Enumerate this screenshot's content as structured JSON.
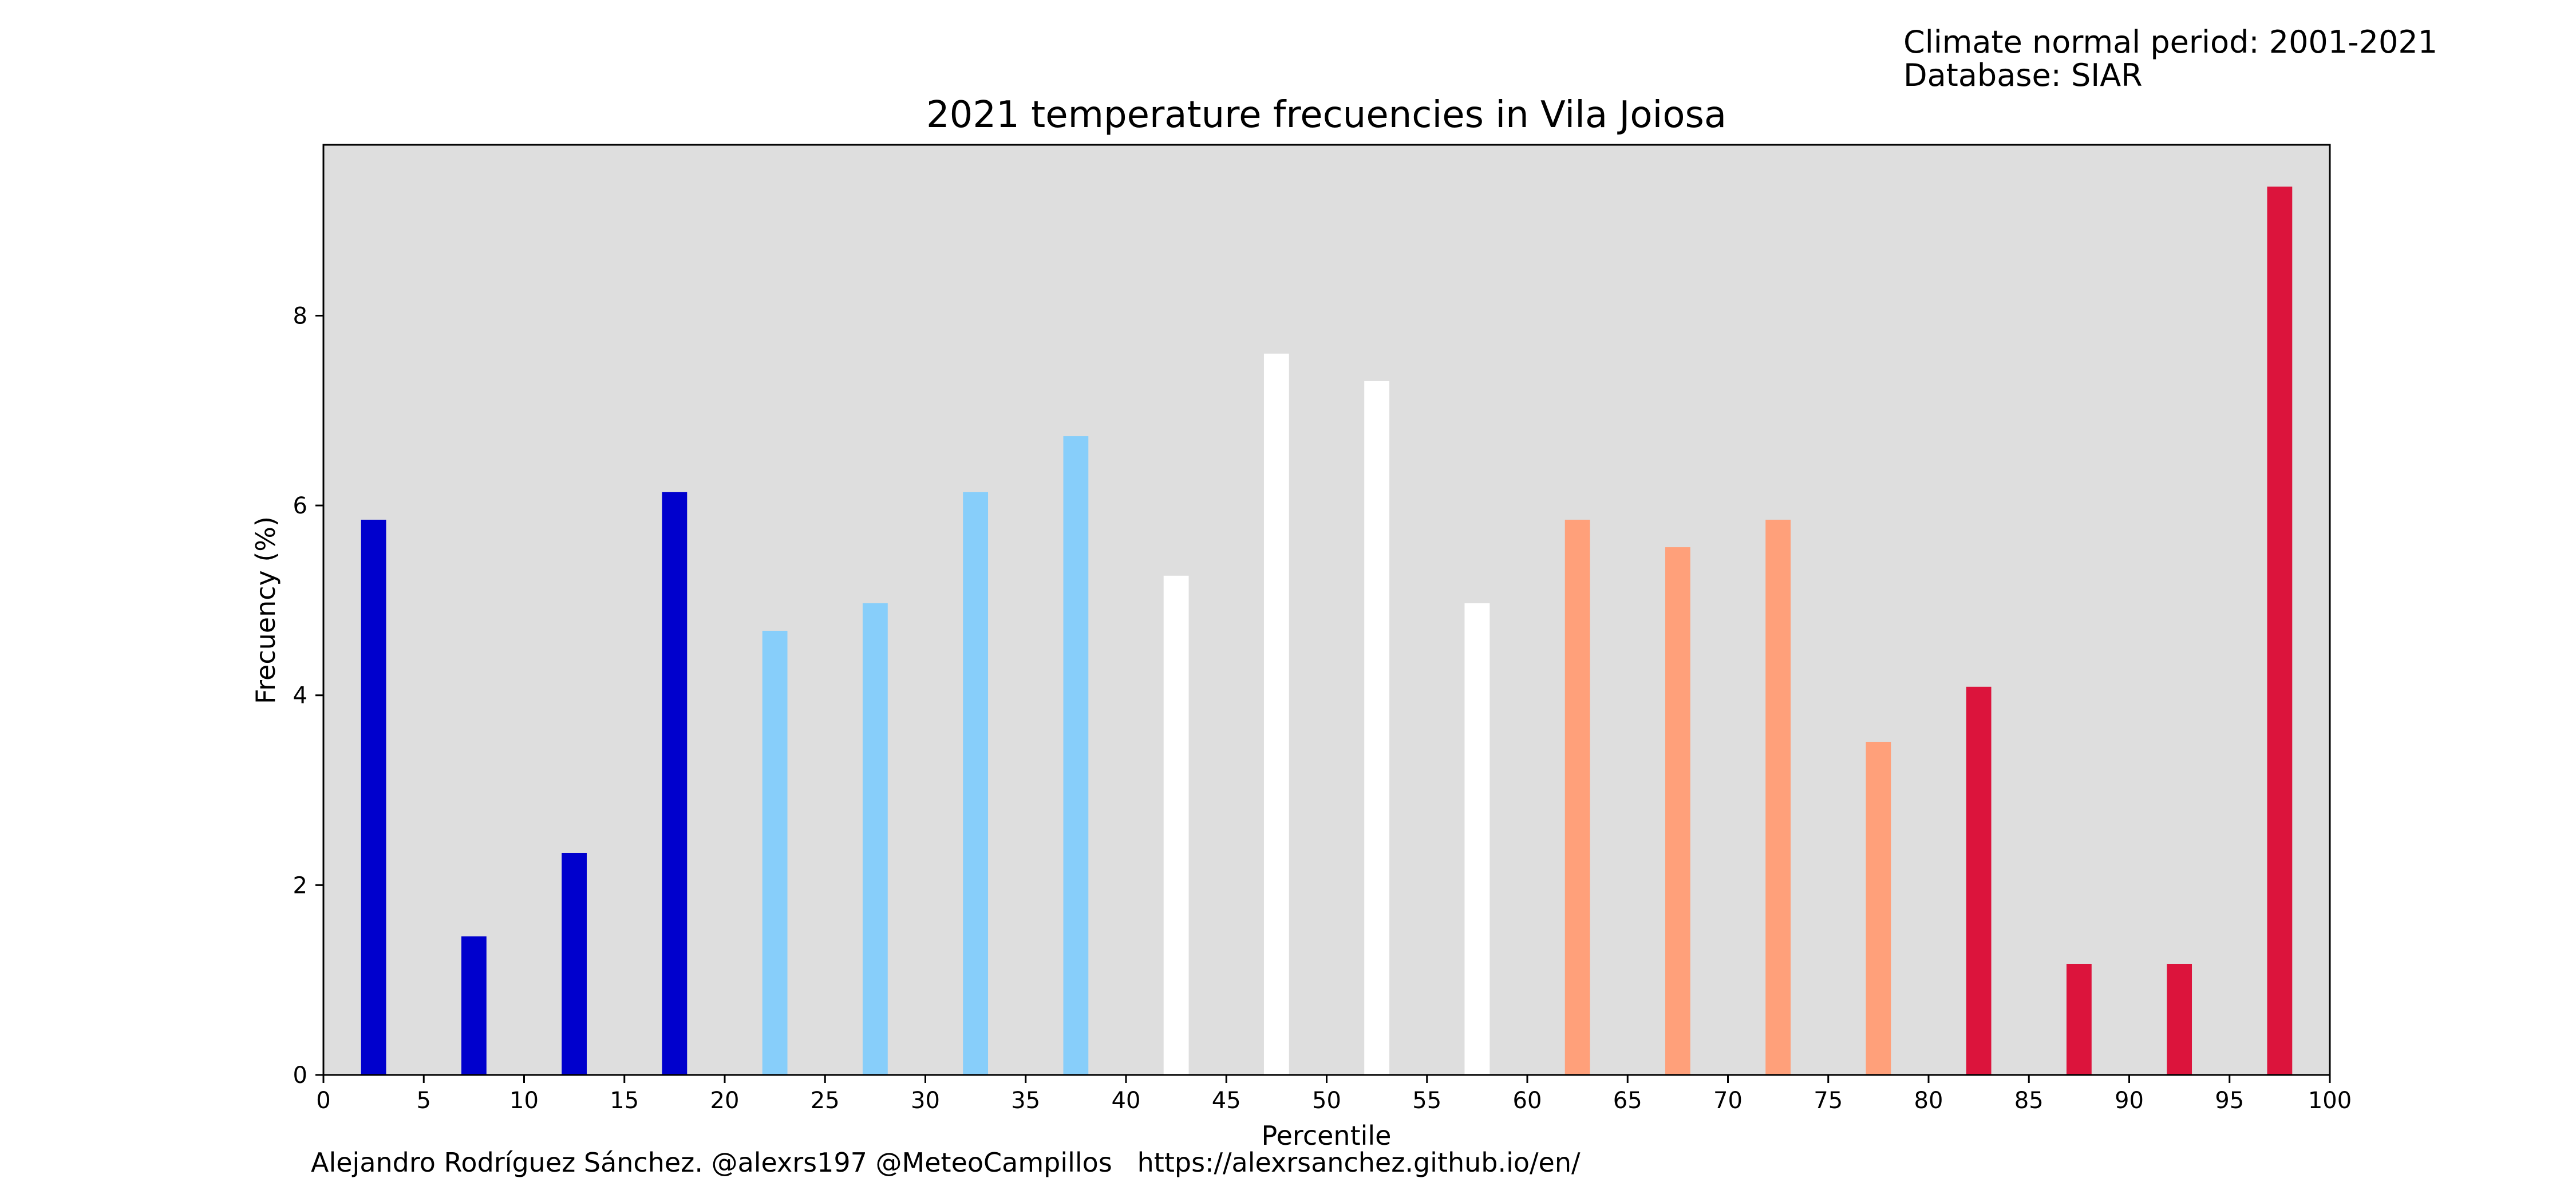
{
  "header": {
    "line1": "Climate normal period: 2001-2021",
    "line2": "Database: SIAR"
  },
  "footer": {
    "credit": "Alejandro Rodríguez Sánchez. @alexrs197 @MeteoCampillos   https://alexrsanchez.github.io/en/"
  },
  "chart_data": {
    "type": "bar",
    "title": "2021 temperature frecuencies in Vila Joiosa",
    "xlabel": "Percentile",
    "ylabel": "Frecuency (%)",
    "xlim": [
      0,
      100
    ],
    "ylim": [
      0,
      9.8
    ],
    "grid": false,
    "plot_background": "#dedede",
    "bar_width": 1.25,
    "x_ticks": [
      0,
      5,
      10,
      15,
      20,
      25,
      30,
      35,
      40,
      45,
      50,
      55,
      60,
      65,
      70,
      75,
      80,
      85,
      90,
      95,
      100
    ],
    "y_ticks": [
      0,
      2,
      4,
      6,
      8
    ],
    "x": [
      2.5,
      7.5,
      12.5,
      17.5,
      22.5,
      27.5,
      32.5,
      37.5,
      42.5,
      47.5,
      52.5,
      57.5,
      62.5,
      67.5,
      72.5,
      77.5,
      82.5,
      87.5,
      92.5,
      97.5
    ],
    "values": [
      5.85,
      1.46,
      2.34,
      6.14,
      4.68,
      4.97,
      6.14,
      6.73,
      5.26,
      7.6,
      7.31,
      4.97,
      5.85,
      5.56,
      5.85,
      3.51,
      4.09,
      1.17,
      1.17,
      9.36
    ],
    "colors": [
      "#0000cd",
      "#0000cd",
      "#0000cd",
      "#0000cd",
      "#87cefa",
      "#87cefa",
      "#87cefa",
      "#87cefa",
      "#ffffff",
      "#ffffff",
      "#ffffff",
      "#ffffff",
      "#ffa07a",
      "#ffa07a",
      "#ffa07a",
      "#ffa07a",
      "#dc143c",
      "#dc143c",
      "#dc143c",
      "#dc143c"
    ]
  }
}
